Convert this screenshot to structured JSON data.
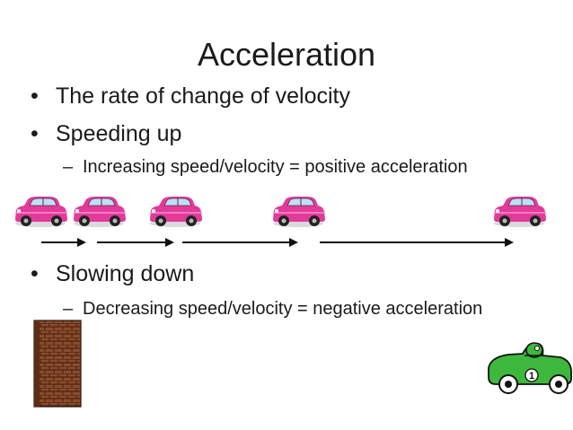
{
  "slide": {
    "title": "Acceleration",
    "bullets": [
      {
        "text": "The rate of change of velocity"
      },
      {
        "text": "Speeding up",
        "sub": "Increasing speed/velocity = positive acceleration"
      },
      {
        "text": "Slowing down",
        "sub": "Decreasing speed/velocity = negative acceleration"
      }
    ],
    "bullet_marker": "•",
    "sub_marker": "–",
    "race_car_number": "1"
  },
  "colors": {
    "pink_car": "#e23a9b",
    "green_car": "#3db83d",
    "brick_wall": "#8b4a2b",
    "arrow": "#111111"
  },
  "icons": [
    "pink-car-icon",
    "arrow-icon",
    "brick-wall-icon",
    "race-car-icon"
  ]
}
